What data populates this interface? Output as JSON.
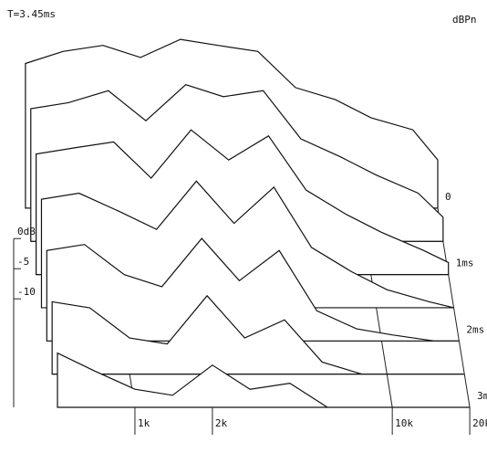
{
  "chart_data": {
    "type": "waterfall",
    "title": "T=3.45ms",
    "unit_label": "dBPn",
    "log_x": true,
    "color": "#111111",
    "x": [
      500,
      700,
      1000,
      1400,
      2000,
      2800,
      4000,
      5600,
      8000,
      11000,
      16000,
      20000
    ],
    "xlim": [
      450,
      20000
    ],
    "xticks": [
      {
        "value": 1000,
        "label": "1k"
      },
      {
        "value": 2000,
        "label": "2k"
      },
      {
        "value": 10000,
        "label": "10k"
      },
      {
        "value": 20000,
        "label": "20k"
      }
    ],
    "ylim": [
      -28,
      0
    ],
    "yticks": [
      {
        "value": 0,
        "label": "0dB"
      },
      -5,
      -10
    ],
    "tlim": [
      0,
      3
    ],
    "tticks": [
      0,
      {
        "value": 1,
        "label": "1ms"
      },
      {
        "value": 2,
        "label": "2ms"
      },
      {
        "value": 3,
        "label": "3ms"
      }
    ],
    "series": [
      {
        "time": 0,
        "values": [
          -4,
          -2,
          -1,
          -3,
          0,
          -1,
          -2,
          -8,
          -10,
          -13,
          -15,
          -20
        ]
      },
      {
        "time": 0.5,
        "values": [
          -6,
          -5,
          -3,
          -8,
          -2,
          -4,
          -3,
          -11,
          -14,
          -17,
          -20,
          -24
        ]
      },
      {
        "time": 1,
        "values": [
          -8,
          -7,
          -6,
          -12,
          -4,
          -9,
          -5,
          -14,
          -18,
          -21,
          -24,
          -26
        ]
      },
      {
        "time": 1.5,
        "values": [
          -10,
          -9,
          -12,
          -15,
          -7,
          -14,
          -8,
          -18,
          -22,
          -25,
          -27,
          -28
        ]
      },
      {
        "time": 2,
        "values": [
          -13,
          -12,
          -17,
          -19,
          -11,
          -18,
          -13,
          -23,
          -26,
          -27,
          -28,
          -28
        ]
      },
      {
        "time": 2.5,
        "values": [
          -16,
          -17,
          -22,
          -23,
          -15,
          -22,
          -19,
          -26,
          -28,
          -28,
          -28,
          -28
        ]
      },
      {
        "time": 3,
        "values": [
          -19,
          -22,
          -25,
          -26,
          -21,
          -25,
          -24,
          -28,
          -28,
          -28,
          -28,
          -28
        ]
      }
    ]
  }
}
